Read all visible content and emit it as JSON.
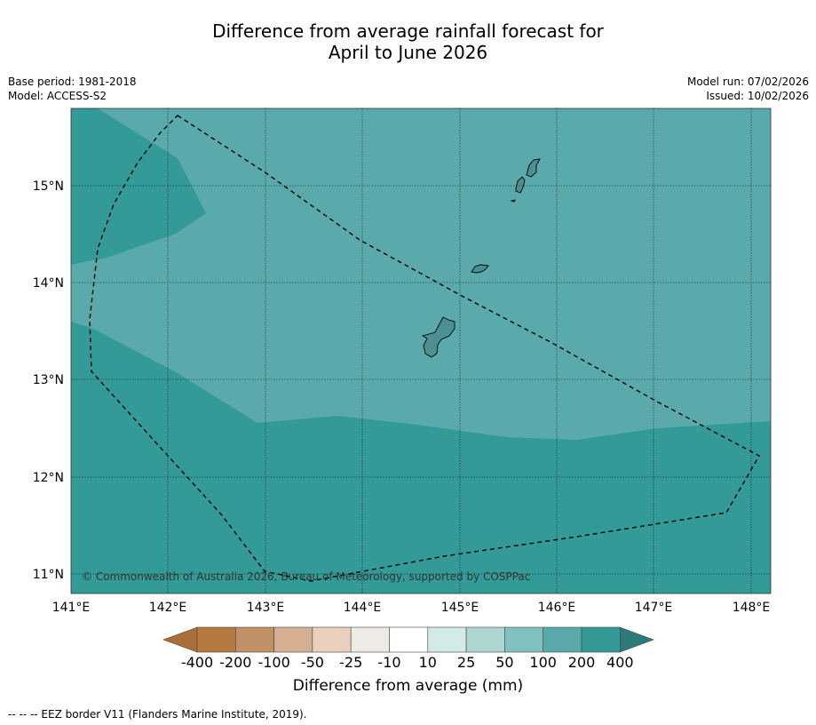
{
  "title": {
    "line1": "Difference from average rainfall forecast for",
    "line2": "April to June 2026"
  },
  "meta": {
    "base_period": "Base period: 1981-2018",
    "model": "Model: ACCESS-S2",
    "model_run": "Model run: 07/02/2026",
    "issued": "Issued: 10/02/2026"
  },
  "map": {
    "lat_labels": [
      "15°N",
      "14°N",
      "13°N",
      "12°N",
      "11°N"
    ],
    "lon_labels": [
      "141°E",
      "142°E",
      "143°E",
      "144°E",
      "145°E",
      "146°E",
      "147°E",
      "148°E"
    ],
    "copyright": "© Commonwealth of Australia 2026, Bureau of Meteorology, supported by COSPPac",
    "colors": {
      "band_100_200": "#5aaaab",
      "band_200_400": "#339a98",
      "outline": "#000000"
    }
  },
  "colorbar": {
    "labels": [
      "-400",
      "-200",
      "-100",
      "-50",
      "-25",
      "-10",
      "10",
      "25",
      "50",
      "100",
      "200",
      "400"
    ],
    "colors": [
      "#a86f3a",
      "#b5783f",
      "#c09166",
      "#d4b090",
      "#e8d0bc",
      "#f0eae6",
      "#ffffff",
      "#d3eae8",
      "#acd5d3",
      "#82c0bf",
      "#5aaaab",
      "#339a98",
      "#2e7a78"
    ],
    "title": "Difference from average (mm)"
  },
  "footnote": "-- -- -- EEZ border V11 (Flanders Marine Institute, 2019)."
}
